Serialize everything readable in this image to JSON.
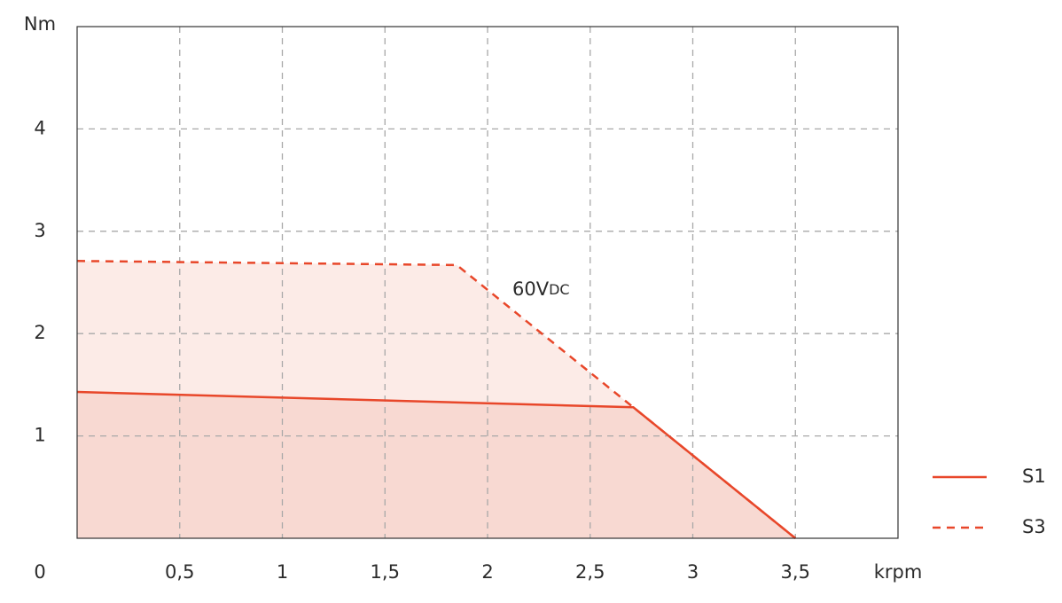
{
  "chart_data": {
    "type": "line",
    "x_label": "krpm",
    "y_label": "Nm",
    "annotation": "60V",
    "annotation_sub": "DC",
    "xlim": [
      0,
      4
    ],
    "ylim": [
      0,
      5
    ],
    "xticks": [
      0,
      {
        "value": 0.5,
        "label": "0,5"
      },
      1,
      {
        "value": 1.5,
        "label": "1,5"
      },
      2,
      {
        "value": 2.5,
        "label": "2,5"
      },
      3,
      {
        "value": 3.5,
        "label": "3,5"
      }
    ],
    "yticks": [
      1,
      2,
      3,
      4
    ],
    "grid": true,
    "series": [
      {
        "name": "S1",
        "color": "#e8472a",
        "dash": false,
        "fill": "#f8d9d2",
        "x": [
          0,
          2.71,
          3.5
        ],
        "values": [
          1.43,
          1.28,
          0
        ]
      },
      {
        "name": "S3",
        "color": "#e8472a",
        "dash": true,
        "fill": "#fcebe7",
        "x": [
          0,
          1.85,
          2.71,
          3.5
        ],
        "values": [
          2.71,
          2.67,
          1.28,
          0
        ]
      }
    ]
  }
}
